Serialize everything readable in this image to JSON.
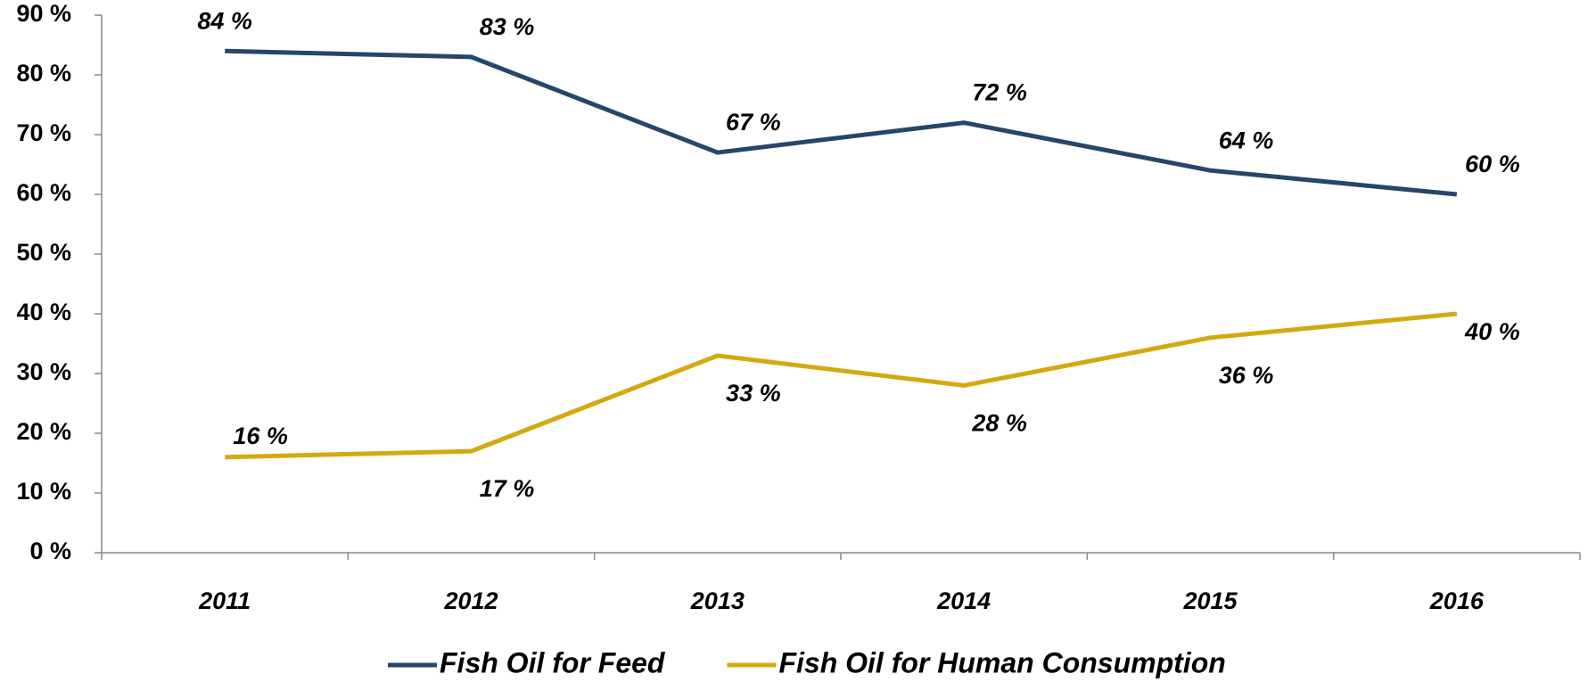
{
  "chart_data": {
    "type": "line",
    "categories": [
      "2011",
      "2012",
      "2013",
      "2014",
      "2015",
      "2016"
    ],
    "series": [
      {
        "name": "Fish Oil for Feed",
        "color": "#24476b",
        "values": [
          84,
          83,
          67,
          72,
          64,
          60
        ],
        "value_labels": [
          "84 %",
          "83 %",
          "67 %",
          "72 %",
          "64 %",
          "60 %"
        ]
      },
      {
        "name": "Fish Oil for Human Consumption",
        "color": "#d4a90f",
        "values": [
          16,
          17,
          33,
          28,
          36,
          40
        ],
        "value_labels": [
          "16 %",
          "17 %",
          "33 %",
          "28 %",
          "36 %",
          "40 %"
        ]
      }
    ],
    "ylim": [
      0,
      90
    ],
    "yticks": [
      {
        "value": 0,
        "label": "0 %"
      },
      {
        "value": 10,
        "label": "10 %"
      },
      {
        "value": 20,
        "label": "20 %"
      },
      {
        "value": 30,
        "label": "30 %"
      },
      {
        "value": 40,
        "label": "40 %"
      },
      {
        "value": 50,
        "label": "50 %"
      },
      {
        "value": 60,
        "label": "60 %"
      },
      {
        "value": 70,
        "label": "70 %"
      },
      {
        "value": 80,
        "label": "80 %"
      },
      {
        "value": 90,
        "label": "90 %"
      }
    ],
    "grid": false,
    "legend": "bottom"
  }
}
